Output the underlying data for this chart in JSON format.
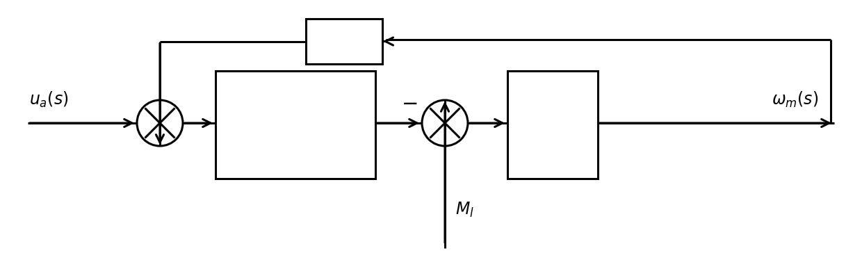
{
  "fig_width": 12.4,
  "fig_height": 3.87,
  "bg_color": "#ffffff",
  "line_color": "#000000",
  "line_width": 2.2,
  "ua_label": "$u_a(s)$",
  "wm_label": "$\\omega_m(s)$",
  "Ml_label": "$M_l$",
  "minus_label": "$-$",
  "font_size": 17,
  "font_size_block": 15
}
